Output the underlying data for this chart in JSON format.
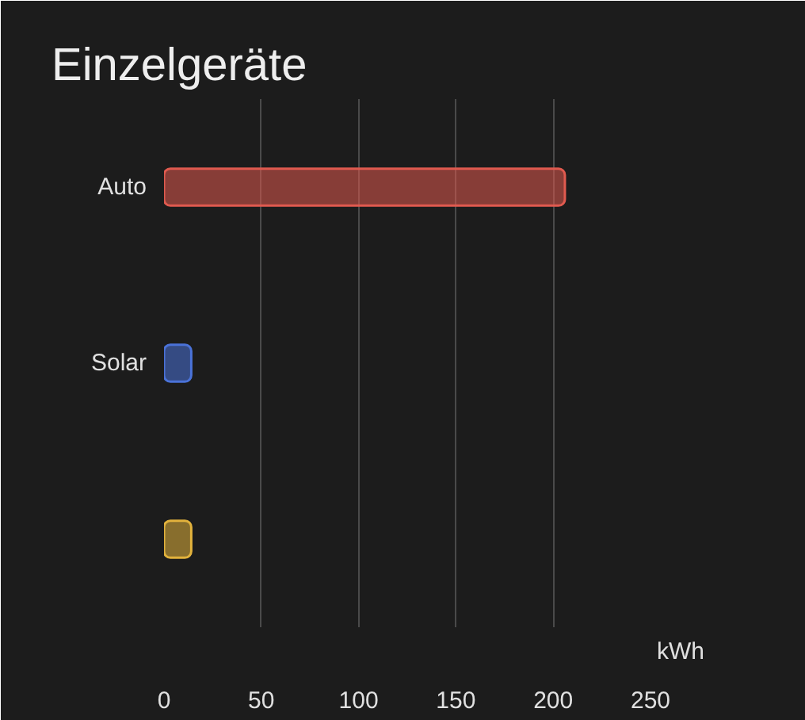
{
  "chart_data": {
    "type": "bar",
    "title": "Einzelgeräte",
    "orientation": "horizontal",
    "categories": [
      "Auto",
      "Solar",
      null
    ],
    "values": [
      206,
      14,
      14
    ],
    "colors": [
      "#e05a4f",
      "#4a72d8",
      "#e2b23c"
    ],
    "xlabel": "kWh",
    "xlim": [
      0,
      250
    ],
    "xticks": [
      0,
      50,
      100,
      150,
      200,
      250
    ],
    "grid": "x"
  }
}
